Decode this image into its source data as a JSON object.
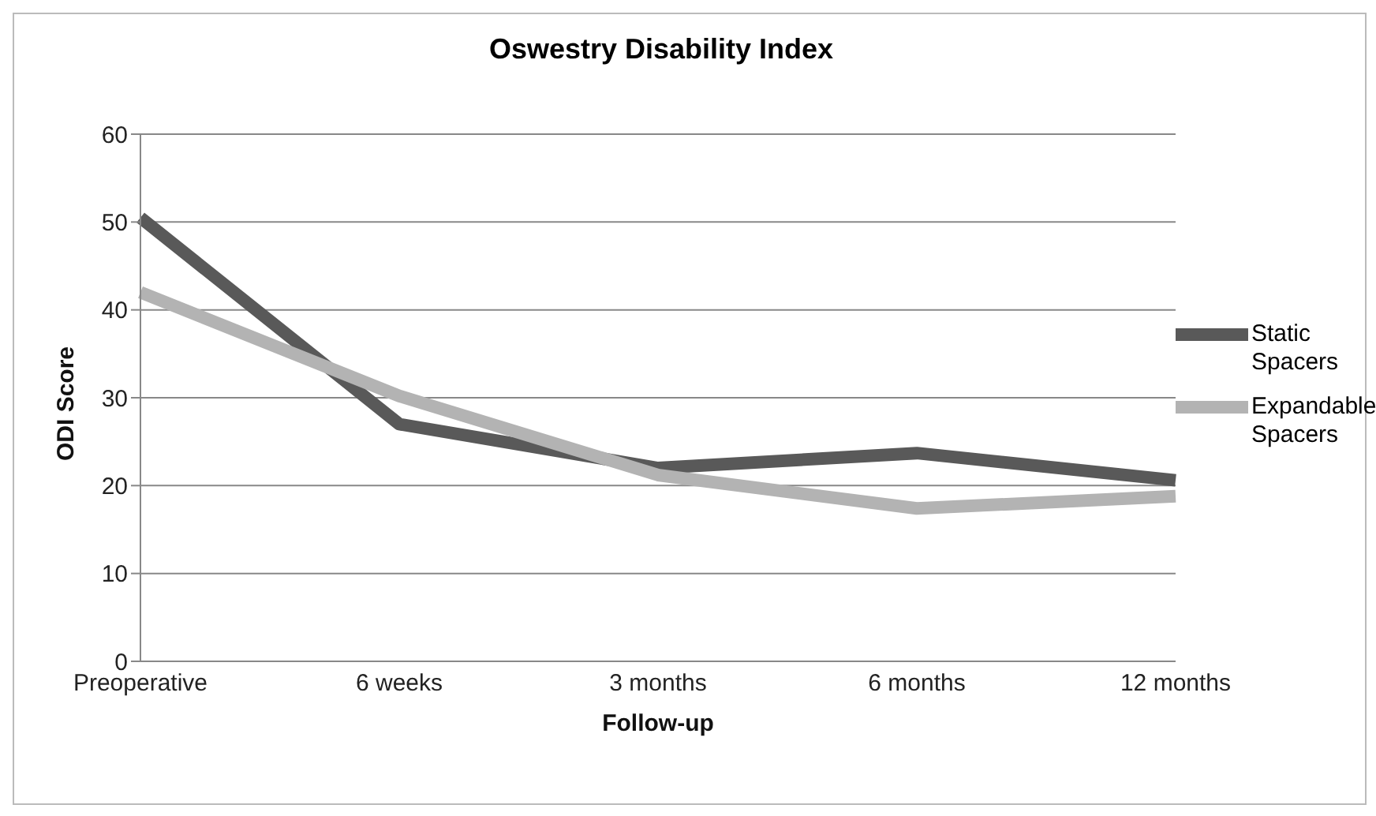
{
  "chart_data": {
    "type": "line",
    "title": "Oswestry Disability Index",
    "xlabel": "Follow-up",
    "ylabel": "ODI Score",
    "categories": [
      "Preoperative",
      "6 weeks",
      "3 months",
      "6 months",
      "12 months"
    ],
    "series": [
      {
        "name": "Static Spacers",
        "color": "#595959",
        "values": [
          50.5,
          27,
          22,
          23.7,
          20.6
        ]
      },
      {
        "name": "Expandable Spacers",
        "color": "#b3b3b3",
        "values": [
          42,
          30.2,
          21.2,
          17.4,
          18.8
        ]
      }
    ],
    "ylim": [
      0,
      60
    ],
    "yticks": [
      0,
      10,
      20,
      30,
      40,
      50,
      60
    ],
    "grid": "y",
    "legend": "right",
    "marker": "none",
    "line_style": "solid"
  }
}
